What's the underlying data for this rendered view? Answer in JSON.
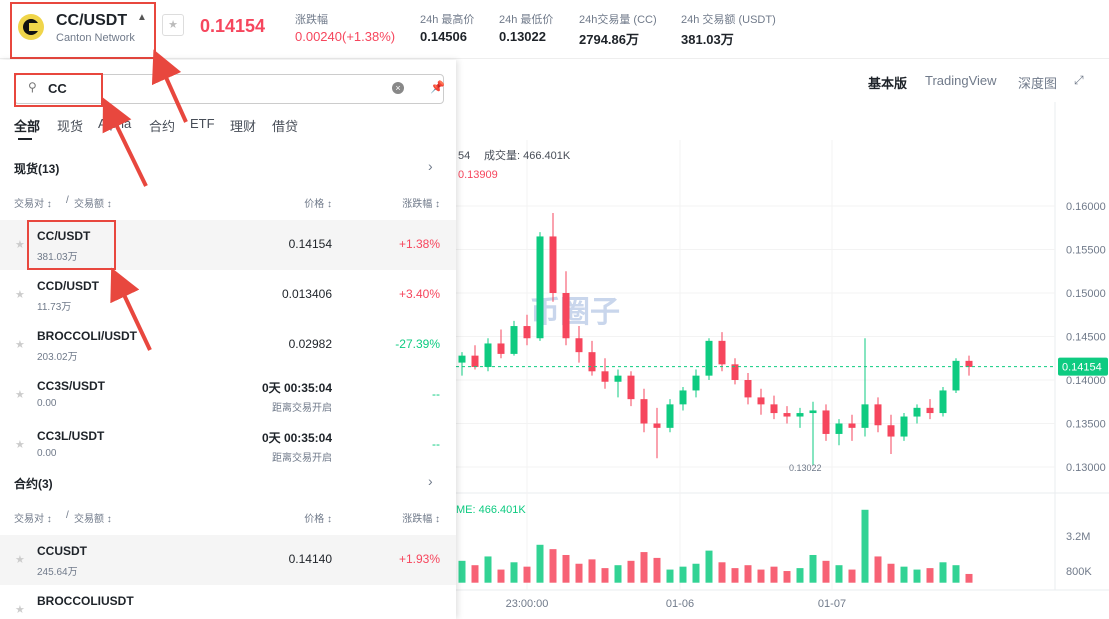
{
  "header": {
    "symbol": "CC/USDT",
    "network": "Canton Network",
    "price": "0.14154",
    "change_label": "涨跌幅",
    "change": "0.00240(+1.38%)",
    "stats": [
      {
        "label": "24h 最高价",
        "value": "0.14506"
      },
      {
        "label": "24h 最低价",
        "value": "0.13022"
      },
      {
        "label": "24h交易量 (CC)",
        "value": "2794.86万"
      },
      {
        "label": "24h 交易额 (USDT)",
        "value": "381.03万"
      }
    ]
  },
  "toolbar": [
    "基本版",
    "TradingView",
    "深度图"
  ],
  "search": {
    "query": "CC"
  },
  "tabs": [
    "全部",
    "现货",
    "Alpha",
    "合约",
    "ETF",
    "理财",
    "借贷"
  ],
  "sections": [
    {
      "title": "现货(13)",
      "columns": {
        "pair": "交易对",
        "volume": "交易额",
        "price": "价格",
        "change": "涨跌幅"
      },
      "rows": [
        {
          "pair": "CC/USDT",
          "volume": "381.03万",
          "price": "0.14154",
          "change": "+1.38%"
        },
        {
          "pair": "CCD/USDT",
          "volume": "11.73万",
          "price": "0.013406",
          "change": "+3.40%"
        },
        {
          "pair": "BROCCOLI/USDT",
          "volume": "203.02万",
          "price": "0.02982",
          "change": "-27.39%"
        },
        {
          "pair": "CC3S/USDT",
          "volume": "0.00",
          "price": "0天 00:35:04",
          "note": "距离交易开启",
          "change": "--"
        },
        {
          "pair": "CC3L/USDT",
          "volume": "0.00",
          "price": "0天 00:35:04",
          "note": "距离交易开启",
          "change": "--"
        }
      ]
    },
    {
      "title": "合约(3)",
      "columns": {
        "pair": "交易对",
        "volume": "交易额",
        "price": "价格",
        "change": "涨跌幅"
      },
      "rows": [
        {
          "pair": "CCUSDT",
          "volume": "245.64万",
          "price": "0.14140",
          "change": "+1.93%"
        },
        {
          "pair": "BROCCOLIUSDT"
        }
      ]
    }
  ],
  "chart": {
    "legend": "54",
    "legend_volume": "成交量: 466.401K",
    "legend_close": "0.13909",
    "volume_legend": "ME: 466.401K",
    "watermark": "币圈子",
    "yticks": [
      {
        "value": 0.16,
        "label": "0.16000"
      },
      {
        "value": 0.155,
        "label": "0.15500"
      },
      {
        "value": 0.15,
        "label": "0.15000"
      },
      {
        "value": 0.145,
        "label": "0.14500"
      },
      {
        "value": 0.14,
        "label": "0.14000"
      },
      {
        "value": 0.135,
        "label": "0.13500"
      },
      {
        "value": 0.13,
        "label": "0.13000"
      }
    ],
    "volume_ticks": [
      {
        "value": 3200000,
        "label": "3.2M"
      },
      {
        "value": 800000,
        "label": "800K"
      }
    ],
    "xlabels": [
      "23:00:00",
      "01-06",
      "01-07"
    ],
    "last_price": 0.14154,
    "low_mark": 0.13022,
    "candles": [
      [
        0.142,
        0.1432,
        0.1405,
        0.1428
      ],
      [
        0.1428,
        0.144,
        0.1412,
        0.1415
      ],
      [
        0.1415,
        0.1448,
        0.141,
        0.1442
      ],
      [
        0.1442,
        0.1458,
        0.1425,
        0.143
      ],
      [
        0.143,
        0.1468,
        0.1428,
        0.1462
      ],
      [
        0.1462,
        0.1475,
        0.144,
        0.1448
      ],
      [
        0.1448,
        0.157,
        0.1445,
        0.1565
      ],
      [
        0.1565,
        0.1592,
        0.149,
        0.15
      ],
      [
        0.15,
        0.1525,
        0.144,
        0.1448
      ],
      [
        0.1448,
        0.1462,
        0.142,
        0.1432
      ],
      [
        0.1432,
        0.1445,
        0.1405,
        0.141
      ],
      [
        0.141,
        0.1425,
        0.139,
        0.1398
      ],
      [
        0.1398,
        0.1412,
        0.138,
        0.1405
      ],
      [
        0.1405,
        0.141,
        0.137,
        0.1378
      ],
      [
        0.1378,
        0.139,
        0.134,
        0.135
      ],
      [
        0.135,
        0.1368,
        0.131,
        0.1345
      ],
      [
        0.1345,
        0.1378,
        0.134,
        0.1372
      ],
      [
        0.1372,
        0.1392,
        0.1365,
        0.1388
      ],
      [
        0.1388,
        0.1412,
        0.138,
        0.1405
      ],
      [
        0.1405,
        0.1448,
        0.14,
        0.1445
      ],
      [
        0.1445,
        0.1455,
        0.141,
        0.1418
      ],
      [
        0.1418,
        0.1425,
        0.1395,
        0.14
      ],
      [
        0.14,
        0.1408,
        0.1372,
        0.138
      ],
      [
        0.138,
        0.139,
        0.136,
        0.1372
      ],
      [
        0.1372,
        0.1382,
        0.1355,
        0.1362
      ],
      [
        0.1362,
        0.137,
        0.135,
        0.1358
      ],
      [
        0.1358,
        0.1368,
        0.1345,
        0.1362
      ],
      [
        0.1362,
        0.1375,
        0.1302,
        0.1365
      ],
      [
        0.1365,
        0.1372,
        0.133,
        0.1338
      ],
      [
        0.1338,
        0.1355,
        0.1325,
        0.135
      ],
      [
        0.135,
        0.136,
        0.133,
        0.1345
      ],
      [
        0.1345,
        0.1448,
        0.1335,
        0.1372
      ],
      [
        0.1372,
        0.138,
        0.134,
        0.1348
      ],
      [
        0.1348,
        0.136,
        0.1315,
        0.1335
      ],
      [
        0.1335,
        0.1362,
        0.133,
        0.1358
      ],
      [
        0.1358,
        0.1372,
        0.135,
        0.1368
      ],
      [
        0.1368,
        0.1378,
        0.1355,
        0.1362
      ],
      [
        0.1362,
        0.1392,
        0.1358,
        0.1388
      ],
      [
        0.1388,
        0.1425,
        0.1385,
        0.1422
      ],
      [
        0.1422,
        0.1428,
        0.1405,
        0.1415
      ]
    ],
    "volumes": [
      1500000,
      1200000,
      1800000,
      900000,
      1400000,
      1100000,
      2600000,
      2300000,
      1900000,
      1300000,
      1600000,
      1000000,
      1200000,
      1500000,
      2100000,
      1700000,
      900000,
      1100000,
      1300000,
      2200000,
      1400000,
      1000000,
      1200000,
      900000,
      1100000,
      800000,
      1000000,
      1900000,
      1500000,
      1200000,
      900000,
      5000000,
      1800000,
      1300000,
      1100000,
      900000,
      1000000,
      1400000,
      1200000,
      600000
    ]
  }
}
